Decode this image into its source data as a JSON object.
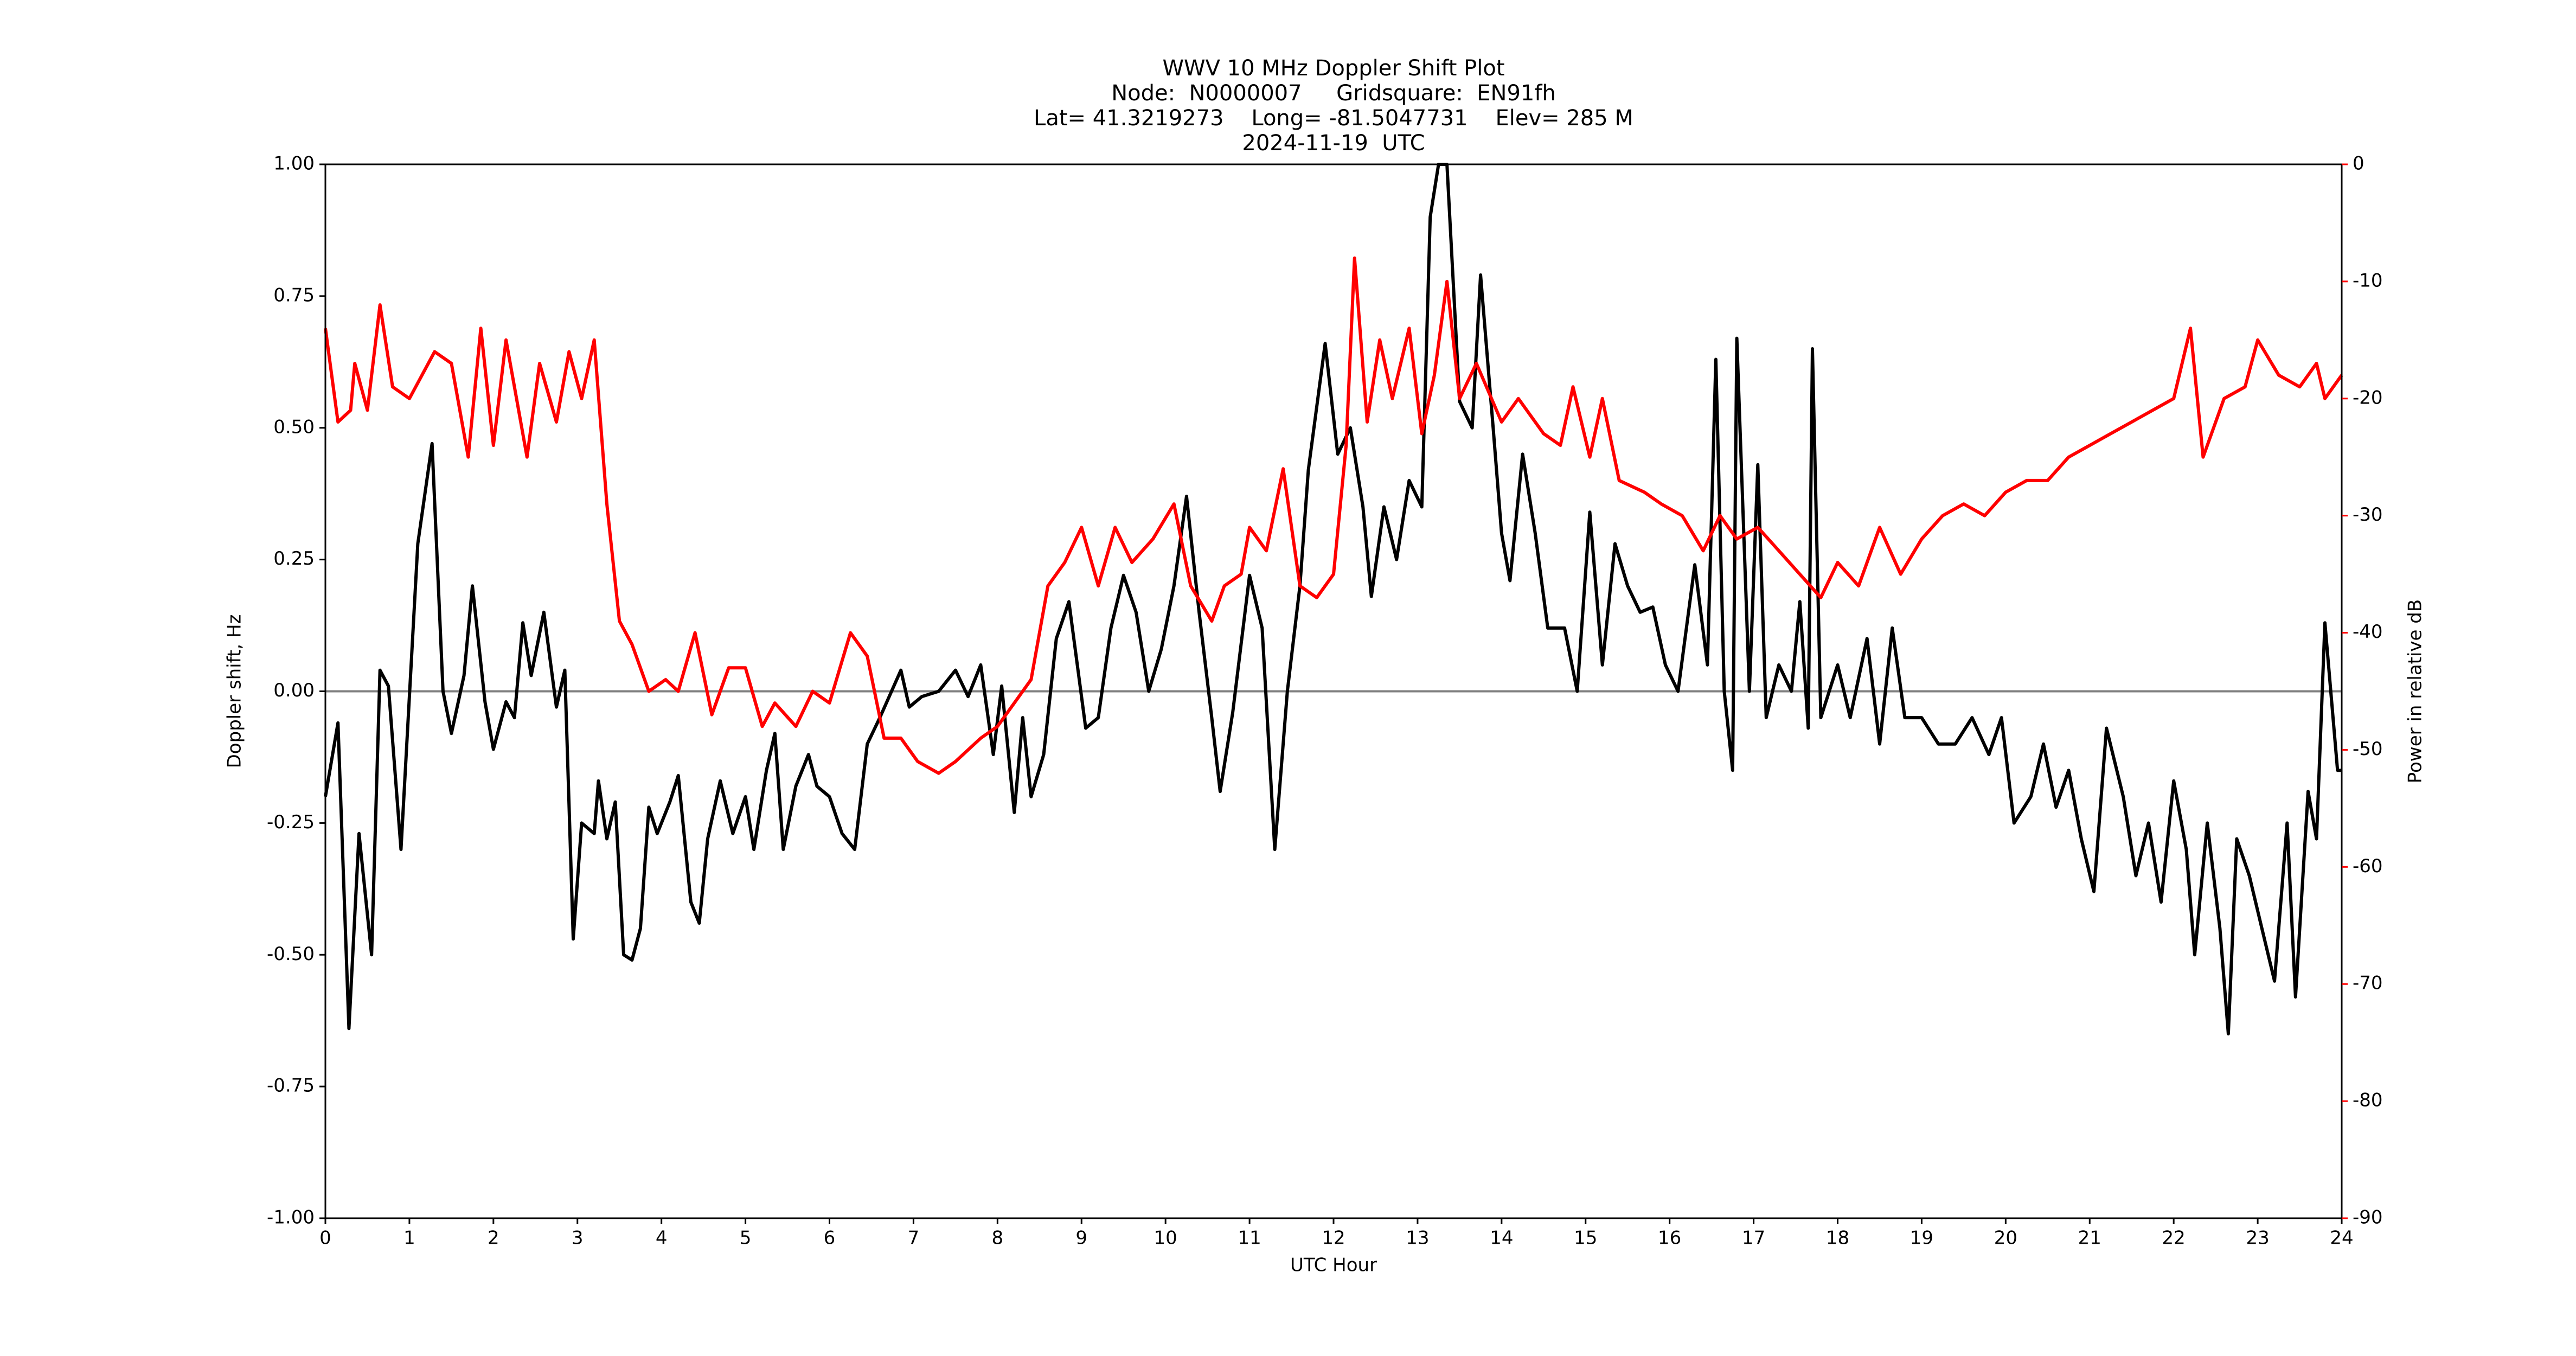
{
  "chart_data": {
    "type": "line",
    "title": [
      "WWV 10 MHz Doppler Shift Plot",
      "Node:  N0000007     Gridsquare:  EN91fh",
      "Lat= 41.3219273    Long= -81.5047731    Elev= 285 M",
      "2024-11-19  UTC"
    ],
    "x_label": "UTC Hour",
    "y_label": "Doppler shift, Hz",
    "y2_label": "Power in relative dB",
    "xlim": [
      0,
      24
    ],
    "xticks": [
      0,
      1,
      2,
      3,
      4,
      5,
      6,
      7,
      8,
      9,
      10,
      11,
      12,
      13,
      14,
      15,
      16,
      17,
      18,
      19,
      20,
      21,
      22,
      23,
      24
    ],
    "ylim": [
      -1,
      1
    ],
    "yticks": [
      {
        "value": -1,
        "label": "-1.00"
      },
      {
        "value": -0.75,
        "label": "-0.75"
      },
      {
        "value": -0.5,
        "label": "-0.50"
      },
      {
        "value": -0.25,
        "label": "-0.25"
      },
      {
        "value": 0,
        "label": "0.00"
      },
      {
        "value": 0.25,
        "label": "0.25"
      },
      {
        "value": 0.5,
        "label": "0.50"
      },
      {
        "value": 0.75,
        "label": "0.75"
      },
      {
        "value": 1,
        "label": "1.00"
      }
    ],
    "y2lim": [
      -90,
      0
    ],
    "y2ticks": [
      -90,
      -80,
      -70,
      -60,
      -50,
      -40,
      -30,
      -20,
      -10,
      0
    ],
    "y2_color": "#ff0000",
    "hline": {
      "value": 0,
      "color": "#808080"
    },
    "series": [
      {
        "color": "#000000",
        "x": [
          0,
          0.15,
          0.28,
          0.4,
          0.55,
          0.65,
          0.75,
          0.9,
          1.1,
          1.27,
          1.4,
          1.5,
          1.65,
          1.75,
          1.9,
          2.0,
          2.15,
          2.25,
          2.35,
          2.45,
          2.6,
          2.75,
          2.85,
          2.95,
          3.05,
          3.2,
          3.25,
          3.35,
          3.45,
          3.55,
          3.65,
          3.75,
          3.85,
          3.95,
          4.1,
          4.2,
          4.35,
          4.45,
          4.55,
          4.7,
          4.85,
          5.0,
          5.1,
          5.25,
          5.35,
          5.45,
          5.6,
          5.75,
          5.85,
          6.0,
          6.15,
          6.3,
          6.45,
          6.6,
          6.85,
          6.95,
          7.1,
          7.3,
          7.5,
          7.65,
          7.8,
          7.95,
          8.05,
          8.2,
          8.3,
          8.4,
          8.55,
          8.7,
          8.85,
          9.05,
          9.2,
          9.35,
          9.5,
          9.65,
          9.8,
          9.95,
          10.1,
          10.25,
          10.4,
          10.55,
          10.65,
          10.8,
          11.0,
          11.15,
          11.3,
          11.45,
          11.6,
          11.7,
          11.9,
          12.05,
          12.2,
          12.35,
          12.45,
          12.6,
          12.75,
          12.9,
          13.05,
          13.15,
          13.25,
          13.35,
          13.5,
          13.65,
          13.75,
          13.9,
          14.0,
          14.1,
          14.25,
          14.4,
          14.55,
          14.75,
          14.9,
          15.05,
          15.2,
          15.35,
          15.5,
          15.65,
          15.8,
          15.95,
          16.1,
          16.3,
          16.45,
          16.55,
          16.65,
          16.75,
          16.8,
          16.95,
          17.05,
          17.15,
          17.3,
          17.45,
          17.55,
          17.65,
          17.7,
          17.8,
          18.0,
          18.15,
          18.35,
          18.5,
          18.65,
          18.8,
          19.0,
          19.2,
          19.4,
          19.6,
          19.8,
          19.95,
          20.1,
          20.3,
          20.45,
          20.6,
          20.75,
          20.9,
          21.05,
          21.2,
          21.4,
          21.55,
          21.7,
          21.85,
          22.0,
          22.15,
          22.25,
          22.4,
          22.55,
          22.65,
          22.75,
          22.9,
          23.05,
          23.2,
          23.35,
          23.45,
          23.6,
          23.7,
          23.8,
          23.95,
          24.0
        ],
        "values": [
          -0.2,
          -0.06,
          -0.64,
          -0.27,
          -0.5,
          0.04,
          0.01,
          -0.3,
          0.28,
          0.47,
          0.0,
          -0.08,
          0.03,
          0.2,
          -0.02,
          -0.11,
          -0.02,
          -0.05,
          0.13,
          0.03,
          0.15,
          -0.03,
          0.04,
          -0.47,
          -0.25,
          -0.27,
          -0.17,
          -0.28,
          -0.21,
          -0.5,
          -0.51,
          -0.45,
          -0.22,
          -0.27,
          -0.21,
          -0.16,
          -0.4,
          -0.44,
          -0.28,
          -0.17,
          -0.27,
          -0.2,
          -0.3,
          -0.15,
          -0.08,
          -0.3,
          -0.18,
          -0.12,
          -0.18,
          -0.2,
          -0.27,
          -0.3,
          -0.1,
          -0.05,
          0.04,
          -0.03,
          -0.01,
          0.0,
          0.04,
          -0.01,
          0.05,
          -0.12,
          0.01,
          -0.23,
          -0.05,
          -0.2,
          -0.12,
          0.1,
          0.17,
          -0.07,
          -0.05,
          0.12,
          0.22,
          0.15,
          0.0,
          0.08,
          0.2,
          0.37,
          0.15,
          -0.05,
          -0.19,
          -0.04,
          0.22,
          0.12,
          -0.3,
          0.0,
          0.2,
          0.42,
          0.66,
          0.45,
          0.5,
          0.35,
          0.18,
          0.35,
          0.25,
          0.4,
          0.35,
          0.9,
          1.0,
          1.0,
          0.55,
          0.5,
          0.79,
          0.5,
          0.3,
          0.21,
          0.45,
          0.3,
          0.12,
          0.12,
          0.0,
          0.34,
          0.05,
          0.28,
          0.2,
          0.15,
          0.16,
          0.05,
          0.0,
          0.24,
          0.05,
          0.63,
          0.0,
          -0.15,
          0.67,
          0.0,
          0.43,
          -0.05,
          0.05,
          0.0,
          0.17,
          -0.07,
          0.65,
          -0.05,
          0.05,
          -0.05,
          0.1,
          -0.1,
          0.12,
          -0.05,
          -0.05,
          -0.1,
          -0.1,
          -0.05,
          -0.12,
          -0.05,
          -0.25,
          -0.2,
          -0.1,
          -0.22,
          -0.15,
          -0.28,
          -0.38,
          -0.07,
          -0.2,
          -0.35,
          -0.25,
          -0.4,
          -0.17,
          -0.3,
          -0.5,
          -0.25,
          -0.45,
          -0.65,
          -0.28,
          -0.35,
          -0.45,
          -0.55,
          -0.25,
          -0.58,
          -0.19,
          -0.28,
          0.13,
          -0.15,
          -0.15
        ]
      },
      {
        "color": "#ff0000",
        "axis": "y2",
        "x": [
          0,
          0.15,
          0.3,
          0.35,
          0.5,
          0.65,
          0.8,
          1.0,
          1.15,
          1.3,
          1.5,
          1.7,
          1.85,
          2.0,
          2.15,
          2.25,
          2.4,
          2.55,
          2.75,
          2.9,
          3.05,
          3.2,
          3.35,
          3.5,
          3.65,
          3.85,
          4.05,
          4.2,
          4.4,
          4.6,
          4.8,
          5.0,
          5.2,
          5.35,
          5.6,
          5.8,
          6.0,
          6.25,
          6.45,
          6.65,
          6.85,
          7.05,
          7.3,
          7.5,
          7.8,
          8.0,
          8.2,
          8.4,
          8.6,
          8.8,
          9.0,
          9.2,
          9.4,
          9.6,
          9.85,
          10.1,
          10.3,
          10.55,
          10.7,
          10.9,
          11.0,
          11.2,
          11.4,
          11.6,
          11.8,
          12.0,
          12.15,
          12.25,
          12.4,
          12.55,
          12.7,
          12.9,
          13.05,
          13.2,
          13.35,
          13.5,
          13.7,
          14.0,
          14.2,
          14.5,
          14.7,
          14.85,
          15.05,
          15.2,
          15.4,
          15.7,
          15.9,
          16.15,
          16.4,
          16.6,
          16.8,
          17.05,
          17.3,
          17.55,
          17.8,
          18.0,
          18.25,
          18.5,
          18.75,
          19.0,
          19.25,
          19.5,
          19.75,
          20.0,
          20.25,
          20.5,
          20.75,
          21.0,
          21.25,
          21.5,
          21.75,
          22.0,
          22.2,
          22.35,
          22.6,
          22.85,
          23.0,
          23.25,
          23.5,
          23.7,
          23.8,
          24.0
        ],
        "values": [
          -14,
          -22,
          -21,
          -17,
          -21,
          -12,
          -19,
          -20,
          -18,
          -16,
          -17,
          -25,
          -14,
          -24,
          -15,
          -19,
          -25,
          -17,
          -22,
          -16,
          -20,
          -15,
          -29,
          -39,
          -41,
          -45,
          -44,
          -45,
          -40,
          -47,
          -43,
          -43,
          -48,
          -46,
          -48,
          -45,
          -46,
          -40,
          -42,
          -49,
          -49,
          -51,
          -52,
          -51,
          -49,
          -48,
          -46,
          -44,
          -36,
          -34,
          -31,
          -36,
          -31,
          -34,
          -32,
          -29,
          -36,
          -39,
          -36,
          -35,
          -31,
          -33,
          -26,
          -36,
          -37,
          -35,
          -24,
          -8,
          -22,
          -15,
          -20,
          -14,
          -23,
          -18,
          -10,
          -20,
          -17,
          -22,
          -20,
          -23,
          -24,
          -19,
          -25,
          -20,
          -27,
          -28,
          -29,
          -30,
          -33,
          -30,
          -32,
          -31,
          -33,
          -35,
          -37,
          -34,
          -36,
          -31,
          -35,
          -32,
          -30,
          -29,
          -30,
          -28,
          -27,
          -27,
          -25,
          -24,
          -23,
          -22,
          -21,
          -20,
          -14,
          -25,
          -20,
          -19,
          -15,
          -18,
          -19,
          -17,
          -20,
          -18
        ]
      }
    ]
  }
}
